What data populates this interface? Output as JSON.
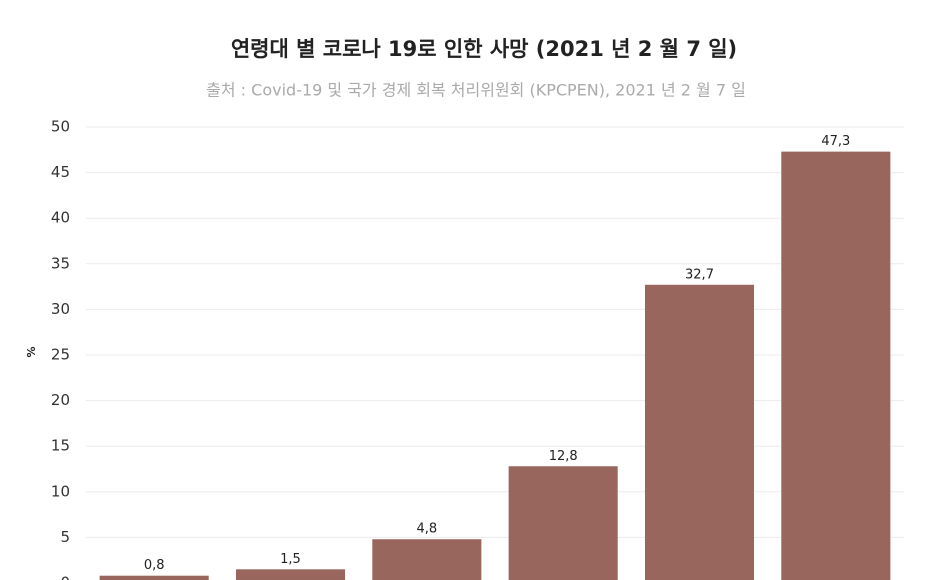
{
  "chart_data": {
    "type": "bar",
    "title": "연령대 별 코로나 19로 인한 사망 (2021 년 2 월 7 일)",
    "subtitle": "출처 : Covid-19 및 국가 경제 회복 처리위원회 (KPCPEN), 2021 년 2 월 7 일",
    "y_label": "%",
    "categories": [
      null,
      null,
      null,
      null,
      null,
      null
    ],
    "values": [
      0.8,
      1.5,
      4.8,
      12.8,
      32.7,
      47.3
    ],
    "value_labels": [
      "0,8",
      "1,5",
      "4,8",
      "12,8",
      "32,7",
      "47,3"
    ],
    "color": "#98665d",
    "ylim": [
      0,
      50
    ],
    "yticks": [
      0,
      5,
      10,
      15,
      20,
      25,
      30,
      35,
      40,
      45,
      50
    ],
    "grid": true
  }
}
